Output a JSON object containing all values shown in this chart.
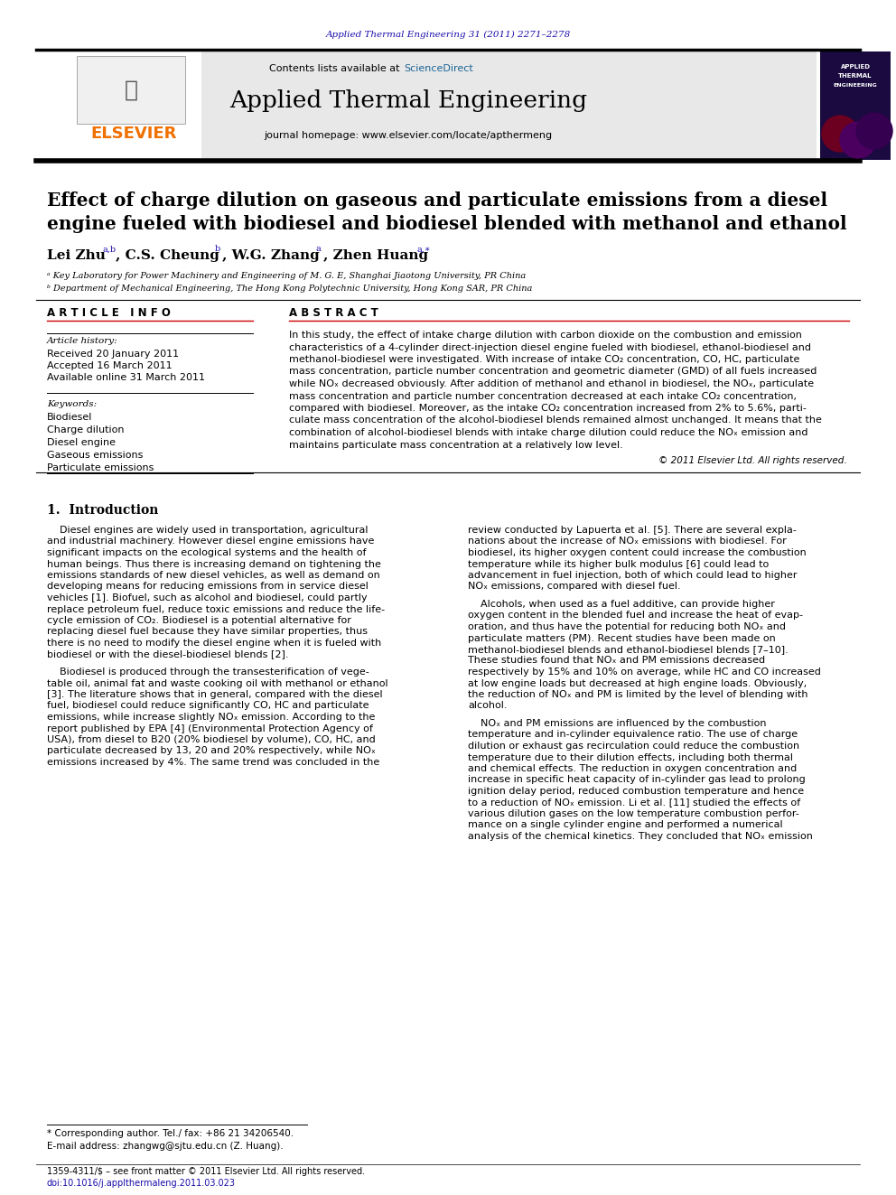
{
  "page_width": 9.92,
  "page_height": 13.23,
  "bg_color": "#ffffff",
  "journal_ref": "Applied Thermal Engineering 31 (2011) 2271–2278",
  "journal_ref_color": "#1a0dab",
  "header_bg": "#e8e8e8",
  "sciencedirect_color": "#1a6496",
  "journal_name": "Applied Thermal Engineering",
  "journal_url": "journal homepage: www.elsevier.com/locate/apthermeng",
  "elsevier_color": "#f07000",
  "title_line1": "Effect of charge dilution on gaseous and particulate emissions from a diesel",
  "title_line2": "engine fueled with biodiesel and biodiesel blended with methanol and ethanol",
  "affil1": "ᵃ Key Laboratory for Power Machinery and Engineering of M. G. E, Shanghai Jiaotong University, PR China",
  "affil2": "ᵇ Department of Mechanical Engineering, The Hong Kong Polytechnic University, Hong Kong SAR, PR China",
  "article_info_title": "A R T I C L E   I N F O",
  "abstract_title": "A B S T R A C T",
  "article_history_title": "Article history:",
  "received": "Received 20 January 2011",
  "accepted": "Accepted 16 March 2011",
  "available": "Available online 31 March 2011",
  "keywords_title": "Keywords:",
  "keywords": [
    "Biodiesel",
    "Charge dilution",
    "Diesel engine",
    "Gaseous emissions",
    "Particulate emissions"
  ],
  "copyright": "© 2011 Elsevier Ltd. All rights reserved.",
  "section1_title": "1.  Introduction",
  "footnote1": "* Corresponding author. Tel./ fax: +86 21 34206540.",
  "footnote2": "E-mail address: zhangwg@sjtu.edu.cn (Z. Huang).",
  "footer1": "1359-4311/$ – see front matter © 2011 Elsevier Ltd. All rights reserved.",
  "footer2": "doi:10.1016/j.applthermaleng.2011.03.023",
  "col1_p1_lines": [
    "    Diesel engines are widely used in transportation, agricultural",
    "and industrial machinery. However diesel engine emissions have",
    "significant impacts on the ecological systems and the health of",
    "human beings. Thus there is increasing demand on tightening the",
    "emissions standards of new diesel vehicles, as well as demand on",
    "developing means for reducing emissions from in service diesel",
    "vehicles [1]. Biofuel, such as alcohol and biodiesel, could partly",
    "replace petroleum fuel, reduce toxic emissions and reduce the life-",
    "cycle emission of CO₂. Biodiesel is a potential alternative for",
    "replacing diesel fuel because they have similar properties, thus",
    "there is no need to modify the diesel engine when it is fueled with",
    "biodiesel or with the diesel-biodiesel blends [2]."
  ],
  "col1_p2_lines": [
    "    Biodiesel is produced through the transesterification of vege-",
    "table oil, animal fat and waste cooking oil with methanol or ethanol",
    "[3]. The literature shows that in general, compared with the diesel",
    "fuel, biodiesel could reduce significantly CO, HC and particulate",
    "emissions, while increase slightly NOₓ emission. According to the",
    "report published by EPA [4] (Environmental Protection Agency of",
    "USA), from diesel to B20 (20% biodiesel by volume), CO, HC, and",
    "particulate decreased by 13, 20 and 20% respectively, while NOₓ",
    "emissions increased by 4%. The same trend was concluded in the"
  ],
  "col2_p1_lines": [
    "review conducted by Lapuerta et al. [5]. There are several expla-",
    "nations about the increase of NOₓ emissions with biodiesel. For",
    "biodiesel, its higher oxygen content could increase the combustion",
    "temperature while its higher bulk modulus [6] could lead to",
    "advancement in fuel injection, both of which could lead to higher",
    "NOₓ emissions, compared with diesel fuel."
  ],
  "col2_p2_lines": [
    "    Alcohols, when used as a fuel additive, can provide higher",
    "oxygen content in the blended fuel and increase the heat of evap-",
    "oration, and thus have the potential for reducing both NOₓ and",
    "particulate matters (PM). Recent studies have been made on",
    "methanol-biodiesel blends and ethanol-biodiesel blends [7–10].",
    "These studies found that NOₓ and PM emissions decreased",
    "respectively by 15% and 10% on average, while HC and CO increased",
    "at low engine loads but decreased at high engine loads. Obviously,",
    "the reduction of NOₓ and PM is limited by the level of blending with",
    "alcohol."
  ],
  "col2_p3_lines": [
    "    NOₓ and PM emissions are influenced by the combustion",
    "temperature and in-cylinder equivalence ratio. The use of charge",
    "dilution or exhaust gas recirculation could reduce the combustion",
    "temperature due to their dilution effects, including both thermal",
    "and chemical effects. The reduction in oxygen concentration and",
    "increase in specific heat capacity of in-cylinder gas lead to prolong",
    "ignition delay period, reduced combustion temperature and hence",
    "to a reduction of NOₓ emission. Li et al. [11] studied the effects of",
    "various dilution gases on the low temperature combustion perfor-",
    "mance on a single cylinder engine and performed a numerical",
    "analysis of the chemical kinetics. They concluded that NOₓ emission"
  ],
  "abstract_lines": [
    "In this study, the effect of intake charge dilution with carbon dioxide on the combustion and emission",
    "characteristics of a 4-cylinder direct-injection diesel engine fueled with biodiesel, ethanol-biodiesel and",
    "methanol-biodiesel were investigated. With increase of intake CO₂ concentration, CO, HC, particulate",
    "mass concentration, particle number concentration and geometric diameter (GMD) of all fuels increased",
    "while NOₓ decreased obviously. After addition of methanol and ethanol in biodiesel, the NOₓ, particulate",
    "mass concentration and particle number concentration decreased at each intake CO₂ concentration,",
    "compared with biodiesel. Moreover, as the intake CO₂ concentration increased from 2% to 5.6%, parti-",
    "culate mass concentration of the alcohol-biodiesel blends remained almost unchanged. It means that the",
    "combination of alcohol-biodiesel blends with intake charge dilution could reduce the NOₓ emission and",
    "maintains particulate mass concentration at a relatively low level."
  ]
}
